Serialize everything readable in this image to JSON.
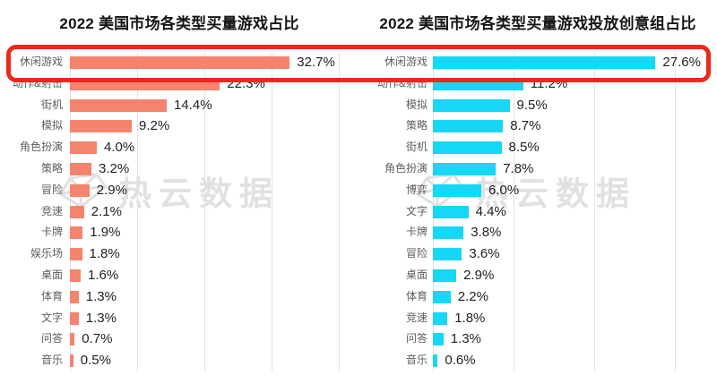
{
  "chart_data": [
    {
      "type": "bar",
      "orientation": "horizontal",
      "title": "2022 美国市场各类型买量游戏占比",
      "categories": [
        "休闲游戏",
        "动作&射击",
        "街机",
        "模拟",
        "角色扮演",
        "策略",
        "冒险",
        "竞速",
        "卡牌",
        "娱乐场",
        "桌面",
        "体育",
        "文字",
        "问答",
        "音乐"
      ],
      "values": [
        32.7,
        22.3,
        14.4,
        9.2,
        4.0,
        3.2,
        2.9,
        2.1,
        1.9,
        1.8,
        1.6,
        1.3,
        1.3,
        0.7,
        0.5
      ],
      "value_labels": [
        "32.7%",
        "22.3%",
        "14.4%",
        "9.2%",
        "4.0%",
        "3.2%",
        "2.9%",
        "2.1%",
        "1.9%",
        "1.8%",
        "1.6%",
        "1.3%",
        "1.3%",
        "0.7%",
        "0.5%"
      ],
      "bar_color": "#f5846f",
      "xlim": [
        0,
        40
      ],
      "grid_step": 10,
      "grid": true,
      "xlabel": "",
      "ylabel": "",
      "legend": false
    },
    {
      "type": "bar",
      "orientation": "horizontal",
      "title": "2022 美国市场各类型买量游戏投放创意组占比",
      "categories": [
        "休闲游戏",
        "动作&射击",
        "模拟",
        "策略",
        "街机",
        "角色扮演",
        "博弈",
        "文字",
        "卡牌",
        "冒险",
        "桌面",
        "体育",
        "竞速",
        "问答",
        "音乐"
      ],
      "values": [
        27.6,
        11.2,
        9.5,
        8.7,
        8.5,
        7.8,
        6.0,
        4.4,
        3.8,
        3.6,
        2.9,
        2.2,
        1.8,
        1.3,
        0.6
      ],
      "value_labels": [
        "27.6%",
        "11.2%",
        "9.5%",
        "8.7%",
        "8.5%",
        "7.8%",
        "6.0%",
        "4.4%",
        "3.8%",
        "3.6%",
        "2.9%",
        "2.2%",
        "1.8%",
        "1.3%",
        "0.6%"
      ],
      "bar_color": "#16d7f5",
      "xlim": [
        0,
        30
      ],
      "grid_step": 10,
      "grid": true,
      "xlabel": "",
      "ylabel": "",
      "legend": false
    }
  ],
  "highlight": {
    "rows": [
      "休闲游戏"
    ],
    "border_color": "#e8291d"
  },
  "watermark": {
    "text": "热云数据",
    "logo": "gem-icon"
  }
}
